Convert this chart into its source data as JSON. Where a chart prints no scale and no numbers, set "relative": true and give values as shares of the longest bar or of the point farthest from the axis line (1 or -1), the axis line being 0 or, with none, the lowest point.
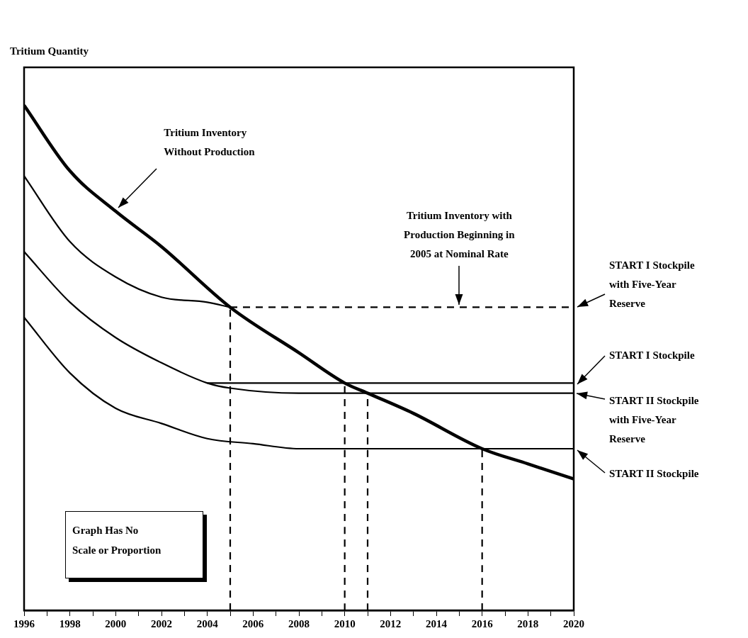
{
  "chart_data": {
    "type": "line",
    "relative": true,
    "ylabel": "Tritium Quantity",
    "xlim": [
      1996,
      2020
    ],
    "xticks": [
      1996,
      {
        "value": 1997,
        "label": null
      },
      1998,
      {
        "value": 1999,
        "label": null
      },
      2000,
      {
        "value": 2001,
        "label": null
      },
      2002,
      {
        "value": 2003,
        "label": null
      },
      2004,
      {
        "value": 2005,
        "label": null
      },
      2006,
      {
        "value": 2007,
        "label": null
      },
      2008,
      {
        "value": 2009,
        "label": null
      },
      2010,
      {
        "value": 2011,
        "label": null
      },
      2012,
      {
        "value": 2013,
        "label": null
      },
      2014,
      {
        "value": 2015,
        "label": null
      },
      2016,
      {
        "value": 2017,
        "label": null
      },
      2018,
      {
        "value": 2019,
        "label": null
      },
      2020
    ],
    "series": [
      {
        "color": "#000000",
        "x": [
          1996,
          1998,
          2000,
          2002,
          2005,
          2008,
          2010,
          2011,
          2013,
          2016,
          2018,
          2020
        ],
        "values": [
          1,
          0.87,
          0.79,
          0.72,
          0.6,
          0.51,
          0.45,
          0.43,
          0.39,
          0.32,
          0.29,
          0.26
        ]
      },
      {
        "color": "#000000",
        "x": [
          1996,
          1998,
          2000,
          2002,
          2004,
          2005
        ],
        "values": [
          0.86,
          0.73,
          0.66,
          0.62,
          0.61,
          0.6
        ]
      },
      {
        "color": "#000000",
        "line_style": "dashed",
        "x": [
          2005,
          2020
        ],
        "values": [
          0.6,
          0.6
        ]
      },
      {
        "color": "#000000",
        "x": [
          1996,
          1998,
          2000,
          2002,
          2004,
          2005,
          2008,
          2011,
          2020
        ],
        "values": [
          0.71,
          0.61,
          0.54,
          0.49,
          0.45,
          0.44,
          0.43,
          0.43,
          0.43
        ]
      },
      {
        "color": "#000000",
        "x": [
          2004,
          2020
        ],
        "values": [
          0.45,
          0.45
        ]
      },
      {
        "color": "#000000",
        "x": [
          1996,
          1998,
          2000,
          2002,
          2004,
          2006,
          2008,
          2020
        ],
        "values": [
          0.58,
          0.47,
          0.4,
          0.37,
          0.34,
          0.33,
          0.32,
          0.32
        ]
      },
      {
        "color": "#000000",
        "line_style": "dashed",
        "x": [
          2005,
          2005
        ],
        "values": [
          0,
          0.6
        ]
      },
      {
        "color": "#000000",
        "line_style": "dashed",
        "x": [
          2010,
          2010
        ],
        "values": [
          0,
          0.45
        ]
      },
      {
        "color": "#000000",
        "line_style": "dashed",
        "x": [
          2011,
          2011
        ],
        "values": [
          0,
          0.43
        ]
      },
      {
        "color": "#000000",
        "line_style": "dashed",
        "x": [
          2016,
          2016
        ],
        "values": [
          0,
          0.32
        ]
      }
    ],
    "annotations": [
      {
        "text": "Tritium Inventory\nWithout Production",
        "x": 2000,
        "y": 0.79
      },
      {
        "text": "Tritium Inventory with\nProduction Beginning in\n2005 at Nominal Rate",
        "x": 2015,
        "y": 0.6
      },
      {
        "text": "START I Stockpile\nwith Five-Year\nReserve",
        "x": 2020,
        "y": 0.6
      },
      {
        "text": "START I Stockpile",
        "x": 2020,
        "y": 0.45
      },
      {
        "text": "START II Stockpile\nwith Five-Year\nReserve",
        "x": 2020,
        "y": 0.43
      },
      {
        "text": "START II Stockpile",
        "x": 2020,
        "y": 0.32
      },
      "Graph Has No\nScale or Proportion"
    ]
  }
}
